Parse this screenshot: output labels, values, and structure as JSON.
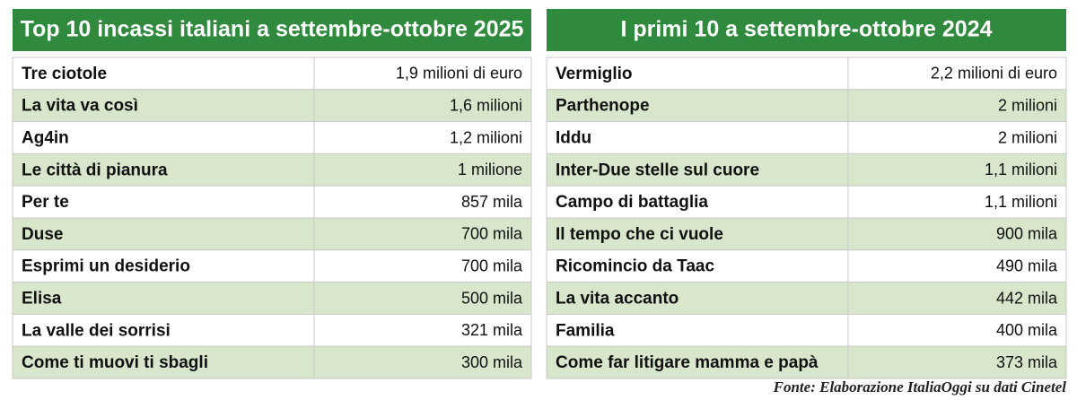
{
  "tables": [
    {
      "title": "Top 10 incassi italiani a settembre-ottobre 2025",
      "rows": [
        [
          "Tre ciotole",
          "1,9 milioni di euro"
        ],
        [
          "La vita va così",
          "1,6 milioni"
        ],
        [
          "Ag4in",
          "1,2 milioni"
        ],
        [
          "Le città di pianura",
          "1 milione"
        ],
        [
          "Per te",
          "857 mila"
        ],
        [
          "Duse",
          "700 mila"
        ],
        [
          "Esprimi un desiderio",
          "700 mila"
        ],
        [
          "Elisa",
          "500 mila"
        ],
        [
          "La valle dei sorrisi",
          "321 mila"
        ],
        [
          "Come ti muovi ti sbagli",
          "300 mila"
        ]
      ]
    },
    {
      "title": "I primi 10 a settembre-ottobre 2024",
      "rows": [
        [
          "Vermiglio",
          "2,2 milioni di euro"
        ],
        [
          "Parthenope",
          "2 milioni"
        ],
        [
          "Iddu",
          "2 milioni"
        ],
        [
          "Inter-Due stelle sul cuore",
          "1,1 milioni"
        ],
        [
          "Campo di battaglia",
          "1,1 milioni"
        ],
        [
          "Il tempo che ci vuole",
          "900 mila"
        ],
        [
          "Ricomincio da Taac",
          "490 mila"
        ],
        [
          "La vita accanto",
          "442 mila"
        ],
        [
          "Familia",
          "400 mila"
        ],
        [
          "Come far litigare mamma e papà",
          "373 mila"
        ]
      ]
    }
  ],
  "source": "Fonte: Elaborazione ItaliaOggi su dati Cinetel"
}
